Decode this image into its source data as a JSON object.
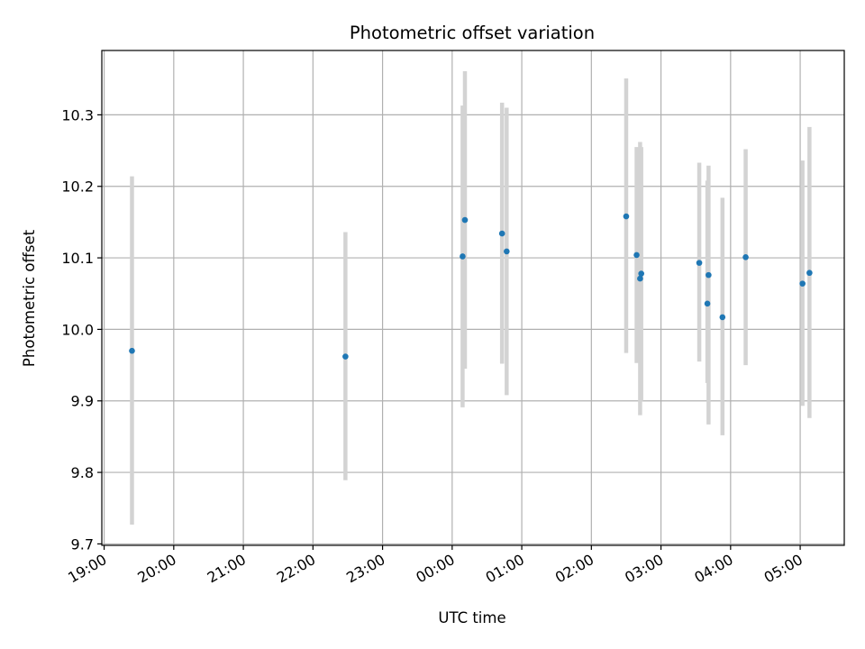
{
  "chart_data": {
    "type": "scatter",
    "title": "Photometric offset variation",
    "xlabel": "UTC time",
    "ylabel": "Photometric offset",
    "x_start": "2020-01-01T19:00",
    "xlim": [
      "2020-01-01T18:58",
      "2020-01-02T05:38"
    ],
    "ylim": [
      9.698,
      10.39
    ],
    "grid": true,
    "x_ticks": [
      "19:00",
      "20:00",
      "21:00",
      "22:00",
      "23:00",
      "00:00",
      "01:00",
      "02:00",
      "03:00",
      "04:00",
      "05:00"
    ],
    "y_ticks": [
      "9.7",
      "9.8",
      "9.9",
      "10.0",
      "10.1",
      "10.2",
      "10.3"
    ],
    "colors": {
      "point": "#1f77b4",
      "errorbar": "#d3d3d3",
      "grid": "#b0b0b0"
    },
    "points": [
      {
        "x": "2020-01-01T19:24",
        "y": 9.97,
        "lo": 9.727,
        "hi": 10.214
      },
      {
        "x": "2020-01-01T22:28",
        "y": 9.962,
        "lo": 9.789,
        "hi": 10.136
      },
      {
        "x": "2020-01-02T00:09",
        "y": 10.102,
        "lo": 9.891,
        "hi": 10.313
      },
      {
        "x": "2020-01-02T00:11",
        "y": 10.153,
        "lo": 9.945,
        "hi": 10.361
      },
      {
        "x": "2020-01-02T00:43",
        "y": 10.134,
        "lo": 9.952,
        "hi": 10.317
      },
      {
        "x": "2020-01-02T00:47",
        "y": 10.109,
        "lo": 9.908,
        "hi": 10.31
      },
      {
        "x": "2020-01-02T02:30",
        "y": 10.158,
        "lo": 9.967,
        "hi": 10.351
      },
      {
        "x": "2020-01-02T02:39",
        "y": 10.104,
        "lo": 9.953,
        "hi": 10.255
      },
      {
        "x": "2020-01-02T02:42",
        "y": 10.071,
        "lo": 9.88,
        "hi": 10.262
      },
      {
        "x": "2020-01-02T02:43",
        "y": 10.078,
        "lo": 9.9,
        "hi": 10.255
      },
      {
        "x": "2020-01-02T03:33",
        "y": 10.093,
        "lo": 9.955,
        "hi": 10.233
      },
      {
        "x": "2020-01-02T03:40",
        "y": 10.036,
        "lo": 9.925,
        "hi": 10.208
      },
      {
        "x": "2020-01-02T03:41",
        "y": 10.076,
        "lo": 9.867,
        "hi": 10.229
      },
      {
        "x": "2020-01-02T03:53",
        "y": 10.017,
        "lo": 9.852,
        "hi": 10.184
      },
      {
        "x": "2020-01-02T04:13",
        "y": 10.101,
        "lo": 9.95,
        "hi": 10.252
      },
      {
        "x": "2020-01-02T05:02",
        "y": 10.064,
        "lo": 9.893,
        "hi": 10.236
      },
      {
        "x": "2020-01-02T05:08",
        "y": 10.079,
        "lo": 9.876,
        "hi": 10.283
      }
    ]
  }
}
